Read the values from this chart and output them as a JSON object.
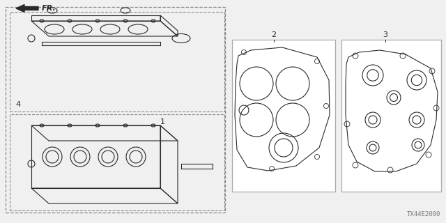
{
  "background_color": "#f0f0f0",
  "diagram_code": "TX44E2000",
  "fr_label": "FR.",
  "line_color": "#2a2a2a",
  "dashed_color": "#888888",
  "box_edge_color": "#aaaaaa"
}
